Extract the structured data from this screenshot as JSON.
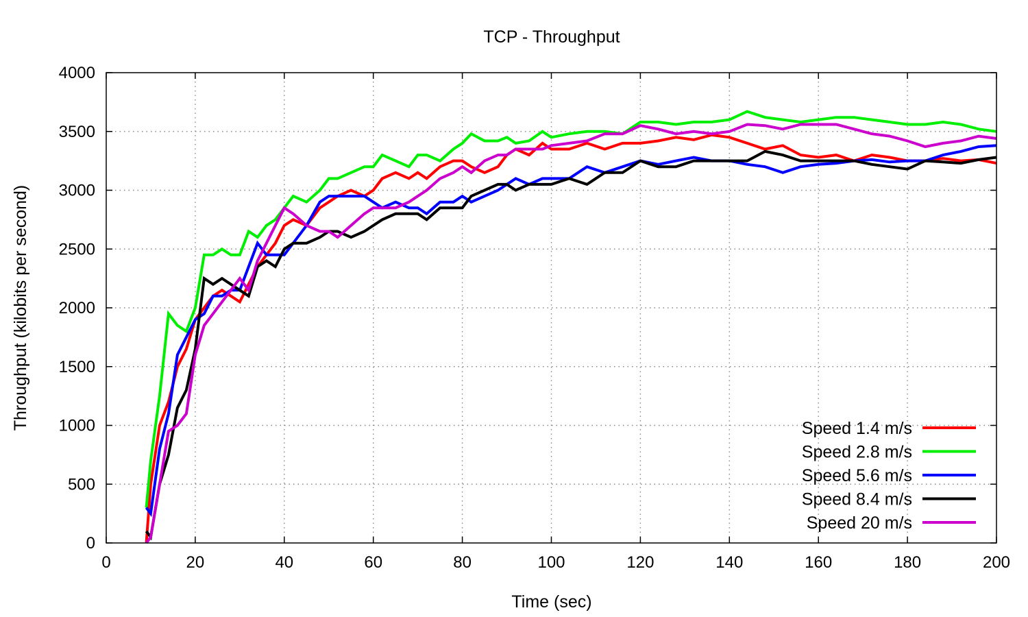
{
  "chart_data": {
    "type": "line",
    "title": "TCP - Throughput",
    "xlabel": "Time (sec)",
    "ylabel": "Throughput (kilobits per second)",
    "xlim": [
      0,
      200
    ],
    "ylim": [
      0,
      4000
    ],
    "xticks": [
      0,
      20,
      40,
      60,
      80,
      100,
      120,
      140,
      160,
      180,
      200
    ],
    "yticks": [
      0,
      500,
      1000,
      1500,
      2000,
      2500,
      3000,
      3500,
      4000
    ],
    "grid": true,
    "legend_position": "bottom-right",
    "series": [
      {
        "name": "Speed 1.4 m/s",
        "color": "#ff0000",
        "x": [
          9,
          10,
          12,
          14,
          16,
          18,
          20,
          22,
          24,
          26,
          28,
          30,
          32,
          34,
          36,
          38,
          40,
          42,
          45,
          48,
          50,
          52,
          55,
          58,
          60,
          62,
          65,
          68,
          70,
          72,
          75,
          78,
          80,
          82,
          85,
          88,
          90,
          92,
          95,
          98,
          100,
          104,
          108,
          112,
          116,
          120,
          124,
          128,
          132,
          136,
          140,
          144,
          148,
          152,
          156,
          160,
          164,
          168,
          172,
          176,
          180,
          184,
          188,
          192,
          196,
          200
        ],
        "y": [
          0,
          500,
          1000,
          1200,
          1500,
          1650,
          1900,
          2000,
          2100,
          2150,
          2100,
          2050,
          2200,
          2350,
          2450,
          2550,
          2700,
          2750,
          2700,
          2850,
          2900,
          2950,
          3000,
          2950,
          3000,
          3100,
          3150,
          3100,
          3150,
          3100,
          3200,
          3250,
          3250,
          3200,
          3150,
          3200,
          3300,
          3350,
          3300,
          3400,
          3350,
          3350,
          3400,
          3350,
          3400,
          3400,
          3420,
          3450,
          3430,
          3470,
          3450,
          3400,
          3350,
          3380,
          3300,
          3280,
          3300,
          3250,
          3300,
          3280,
          3250,
          3250,
          3270,
          3250,
          3260,
          3230
        ]
      },
      {
        "name": "Speed 2.8 m/s",
        "color": "#00ee00",
        "x": [
          9,
          10,
          12,
          14,
          16,
          18,
          20,
          22,
          24,
          26,
          28,
          30,
          32,
          34,
          36,
          38,
          40,
          42,
          45,
          48,
          50,
          52,
          55,
          58,
          60,
          62,
          65,
          68,
          70,
          72,
          75,
          78,
          80,
          82,
          85,
          88,
          90,
          92,
          95,
          98,
          100,
          104,
          108,
          112,
          116,
          120,
          124,
          128,
          132,
          136,
          140,
          144,
          148,
          152,
          156,
          160,
          164,
          168,
          172,
          176,
          180,
          184,
          188,
          192,
          196,
          200
        ],
        "y": [
          300,
          700,
          1250,
          1950,
          1850,
          1800,
          2000,
          2450,
          2450,
          2500,
          2450,
          2450,
          2650,
          2600,
          2700,
          2750,
          2850,
          2950,
          2900,
          3000,
          3100,
          3100,
          3150,
          3200,
          3200,
          3300,
          3250,
          3200,
          3300,
          3300,
          3250,
          3350,
          3400,
          3480,
          3420,
          3420,
          3450,
          3400,
          3420,
          3500,
          3450,
          3480,
          3500,
          3500,
          3480,
          3580,
          3580,
          3560,
          3580,
          3580,
          3600,
          3670,
          3620,
          3600,
          3580,
          3600,
          3620,
          3620,
          3600,
          3580,
          3560,
          3560,
          3580,
          3560,
          3520,
          3500
        ]
      },
      {
        "name": "Speed 5.6 m/s",
        "color": "#0000ff",
        "x": [
          9,
          10,
          12,
          14,
          16,
          18,
          20,
          22,
          24,
          26,
          28,
          30,
          32,
          34,
          36,
          38,
          40,
          42,
          45,
          48,
          50,
          52,
          55,
          58,
          60,
          62,
          65,
          68,
          70,
          72,
          75,
          78,
          80,
          82,
          85,
          88,
          90,
          92,
          95,
          98,
          100,
          104,
          108,
          112,
          116,
          120,
          124,
          128,
          132,
          136,
          140,
          144,
          148,
          152,
          156,
          160,
          164,
          168,
          172,
          176,
          180,
          184,
          188,
          192,
          196,
          200
        ],
        "y": [
          300,
          250,
          800,
          1100,
          1600,
          1750,
          1900,
          1950,
          2100,
          2100,
          2150,
          2150,
          2350,
          2550,
          2450,
          2450,
          2450,
          2550,
          2700,
          2900,
          2950,
          2950,
          2950,
          2950,
          2900,
          2850,
          2900,
          2850,
          2850,
          2800,
          2900,
          2900,
          2950,
          2900,
          2950,
          3000,
          3050,
          3100,
          3050,
          3100,
          3100,
          3100,
          3200,
          3150,
          3200,
          3250,
          3220,
          3250,
          3280,
          3250,
          3250,
          3220,
          3200,
          3150,
          3200,
          3220,
          3230,
          3250,
          3260,
          3240,
          3250,
          3250,
          3300,
          3330,
          3370,
          3380
        ]
      },
      {
        "name": "Speed 8.4 m/s",
        "color": "#000000",
        "x": [
          9,
          10,
          12,
          14,
          16,
          18,
          20,
          22,
          24,
          26,
          28,
          30,
          32,
          34,
          36,
          38,
          40,
          42,
          45,
          48,
          50,
          52,
          55,
          58,
          60,
          62,
          65,
          68,
          70,
          72,
          75,
          78,
          80,
          82,
          85,
          88,
          90,
          92,
          95,
          98,
          100,
          104,
          108,
          112,
          116,
          120,
          124,
          128,
          132,
          136,
          140,
          144,
          148,
          152,
          156,
          160,
          164,
          168,
          172,
          176,
          180,
          184,
          188,
          192,
          196,
          200
        ],
        "y": [
          100,
          50,
          500,
          750,
          1150,
          1300,
          1650,
          2250,
          2200,
          2250,
          2200,
          2150,
          2100,
          2350,
          2400,
          2350,
          2500,
          2550,
          2550,
          2600,
          2650,
          2650,
          2600,
          2650,
          2700,
          2750,
          2800,
          2800,
          2800,
          2750,
          2850,
          2850,
          2850,
          2950,
          3000,
          3050,
          3050,
          3000,
          3050,
          3050,
          3050,
          3100,
          3050,
          3150,
          3150,
          3250,
          3200,
          3200,
          3250,
          3250,
          3250,
          3250,
          3330,
          3300,
          3250,
          3250,
          3250,
          3250,
          3220,
          3200,
          3180,
          3250,
          3240,
          3230,
          3260,
          3280
        ]
      },
      {
        "name": "Speed 20 m/s",
        "color": "#cc00cc",
        "x": [
          9,
          10,
          12,
          14,
          16,
          18,
          20,
          22,
          24,
          26,
          28,
          30,
          32,
          34,
          36,
          38,
          40,
          42,
          45,
          48,
          50,
          52,
          55,
          58,
          60,
          62,
          65,
          68,
          70,
          72,
          75,
          78,
          80,
          82,
          85,
          88,
          90,
          92,
          95,
          98,
          100,
          104,
          108,
          112,
          116,
          120,
          124,
          128,
          132,
          136,
          140,
          144,
          148,
          152,
          156,
          160,
          164,
          168,
          172,
          176,
          180,
          184,
          188,
          192,
          196,
          200
        ],
        "y": [
          0,
          50,
          500,
          950,
          1000,
          1100,
          1600,
          1850,
          1950,
          2050,
          2150,
          2250,
          2150,
          2400,
          2550,
          2700,
          2850,
          2800,
          2700,
          2650,
          2650,
          2600,
          2700,
          2800,
          2850,
          2850,
          2850,
          2900,
          2950,
          3000,
          3100,
          3150,
          3200,
          3150,
          3250,
          3300,
          3300,
          3350,
          3350,
          3350,
          3380,
          3400,
          3420,
          3480,
          3480,
          3550,
          3520,
          3480,
          3500,
          3480,
          3500,
          3560,
          3550,
          3520,
          3560,
          3560,
          3560,
          3520,
          3480,
          3460,
          3420,
          3370,
          3400,
          3420,
          3460,
          3440
        ]
      }
    ]
  }
}
